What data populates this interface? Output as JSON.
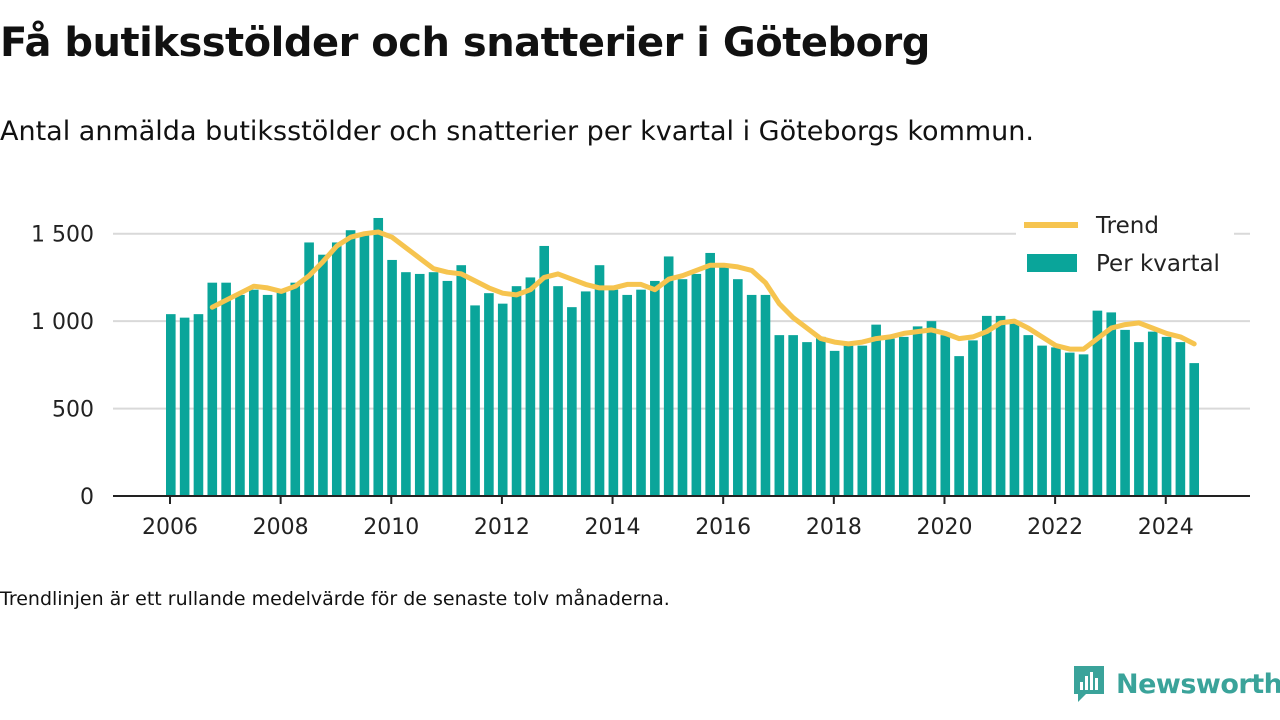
{
  "header": {
    "title": "Få butiksstölder och snatterier i Göteborg",
    "subtitle": "Antal anmälda butiksstölder och snatterier per kvartal i Göteborgs kommun."
  },
  "footer": {
    "note": "Trendlinjen är ett rullande medelvärde för de senaste tolv månaderna.",
    "brand": "Newsworthy"
  },
  "colors": {
    "bar": "#0aa59a",
    "trend": "#f6c44f",
    "grid": "#d9d9d9",
    "axis": "#222222",
    "brand": "#3aa39a"
  },
  "chart_data": {
    "type": "bar",
    "x_start": "2006-Q1",
    "x_ticks": [
      "2006",
      "2008",
      "2010",
      "2012",
      "2014",
      "2016",
      "2018",
      "2020",
      "2022",
      "2024"
    ],
    "y_ticks": [
      0,
      500,
      1000,
      1500
    ],
    "y_tick_labels": [
      "0",
      "500",
      "1 000",
      "1 500"
    ],
    "ylim": [
      0,
      1750
    ],
    "grid": true,
    "legend_position": "top-right",
    "series": [
      {
        "name": "Per kvartal",
        "type": "bar",
        "values": [
          1040,
          1020,
          1040,
          1220,
          1220,
          1150,
          1180,
          1150,
          1170,
          1220,
          1450,
          1380,
          1450,
          1520,
          1500,
          1590,
          1350,
          1280,
          1270,
          1280,
          1230,
          1320,
          1090,
          1160,
          1100,
          1200,
          1250,
          1430,
          1200,
          1080,
          1170,
          1320,
          1180,
          1150,
          1180,
          1230,
          1370,
          1240,
          1270,
          1390,
          1320,
          1240,
          1150,
          1150,
          920,
          920,
          880,
          910,
          830,
          860,
          860,
          980,
          900,
          910,
          970,
          1000,
          920,
          800,
          890,
          1030,
          1030,
          990,
          920,
          860,
          850,
          820,
          810,
          1060,
          1050,
          950,
          880,
          940,
          910,
          880,
          760
        ]
      },
      {
        "name": "Trend",
        "type": "line",
        "values": [
          null,
          null,
          null,
          1080,
          1120,
          1160,
          1200,
          1190,
          1170,
          1200,
          1260,
          1340,
          1430,
          1480,
          1500,
          1510,
          1480,
          1420,
          1360,
          1300,
          1280,
          1270,
          1230,
          1190,
          1160,
          1150,
          1180,
          1250,
          1270,
          1240,
          1210,
          1190,
          1190,
          1210,
          1210,
          1180,
          1240,
          1260,
          1290,
          1320,
          1320,
          1310,
          1290,
          1220,
          1100,
          1020,
          960,
          900,
          880,
          870,
          880,
          900,
          910,
          930,
          940,
          950,
          930,
          900,
          910,
          940,
          990,
          1000,
          960,
          910,
          860,
          840,
          840,
          900,
          960,
          980,
          990,
          960,
          930,
          910,
          870
        ]
      }
    ]
  }
}
